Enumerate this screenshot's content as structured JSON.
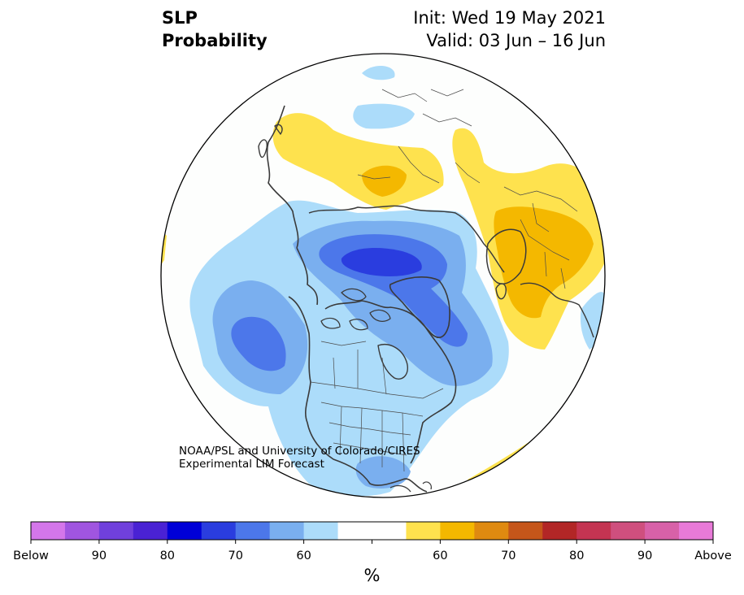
{
  "title": {
    "left_line1": "SLP",
    "left_line2": "Probability",
    "right_line1": "Init: Wed 19 May 2021",
    "right_line2": "Valid: 03 Jun – 16 Jun"
  },
  "credit": {
    "line1": "NOAA/PSL and University of Colorado/CIRES",
    "line2": "Experimental LIM Forecast"
  },
  "colorbar": {
    "colors": [
      "#d476ea",
      "#a055e0",
      "#7040dc",
      "#4a22d4",
      "#0000d8",
      "#2a3ddf",
      "#4c77ea",
      "#7aafef",
      "#acdcfa",
      "#ffffff",
      "#ffffff",
      "#fee24e",
      "#f4b800",
      "#df8a10",
      "#c5561a",
      "#b22626",
      "#c43452",
      "#cf4f7e",
      "#d861a8",
      "#e87ad8"
    ],
    "tick_labels": [
      "Below",
      "90",
      "80",
      "70",
      "60",
      "60",
      "70",
      "80",
      "90",
      "Above"
    ],
    "unit": "%"
  },
  "map_colors": {
    "ocean": "#fdfefd",
    "coast": "#3a3a3a",
    "border": "#4a4a4a"
  }
}
